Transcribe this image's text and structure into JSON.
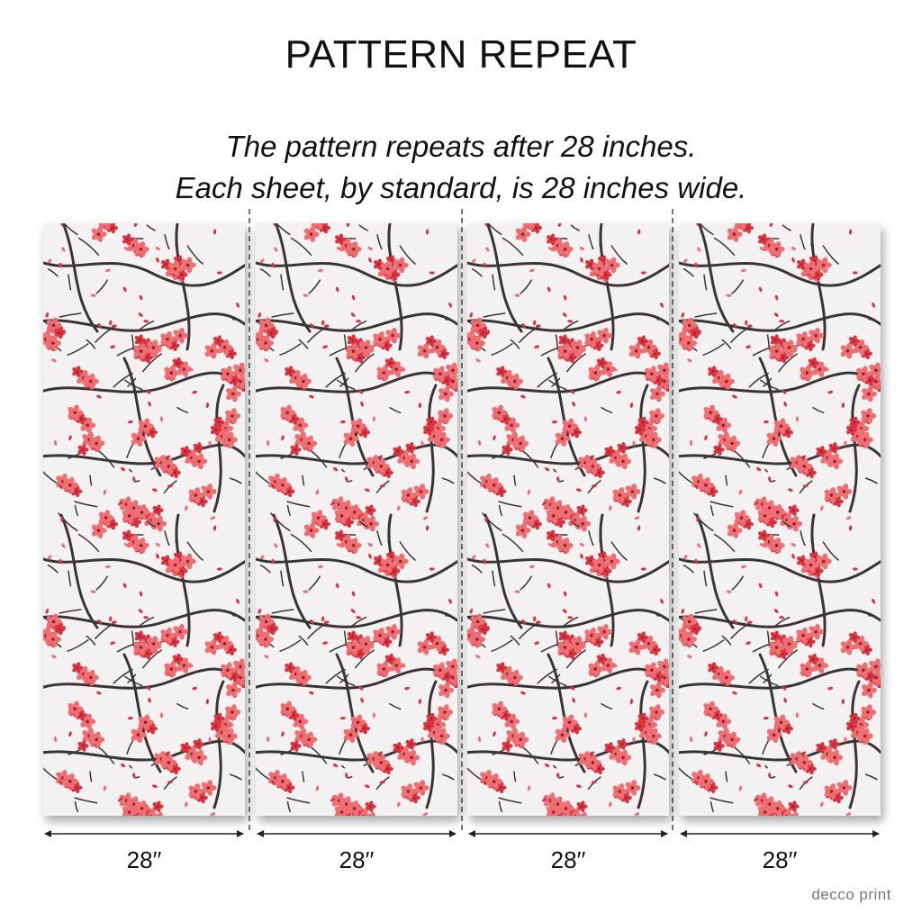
{
  "header": {
    "title": "PATTERN REPEAT",
    "subtitle_line1": "The pattern repeats after 28 inches.",
    "subtitle_line2": "Each sheet, by standard, is 28 inches wide."
  },
  "sheets": [
    {
      "width_label": "28′′"
    },
    {
      "width_label": "28′′"
    },
    {
      "width_label": "28′′"
    },
    {
      "width_label": "28′′"
    }
  ],
  "brand": {
    "name": "decco print"
  },
  "colors": {
    "background": "#f3f1f1",
    "branch": "#3a3535",
    "blossom_dark": "#d8343f",
    "blossom_light": "#ee6f73"
  },
  "pattern": {
    "motif": "cherry-blossom-branches"
  }
}
